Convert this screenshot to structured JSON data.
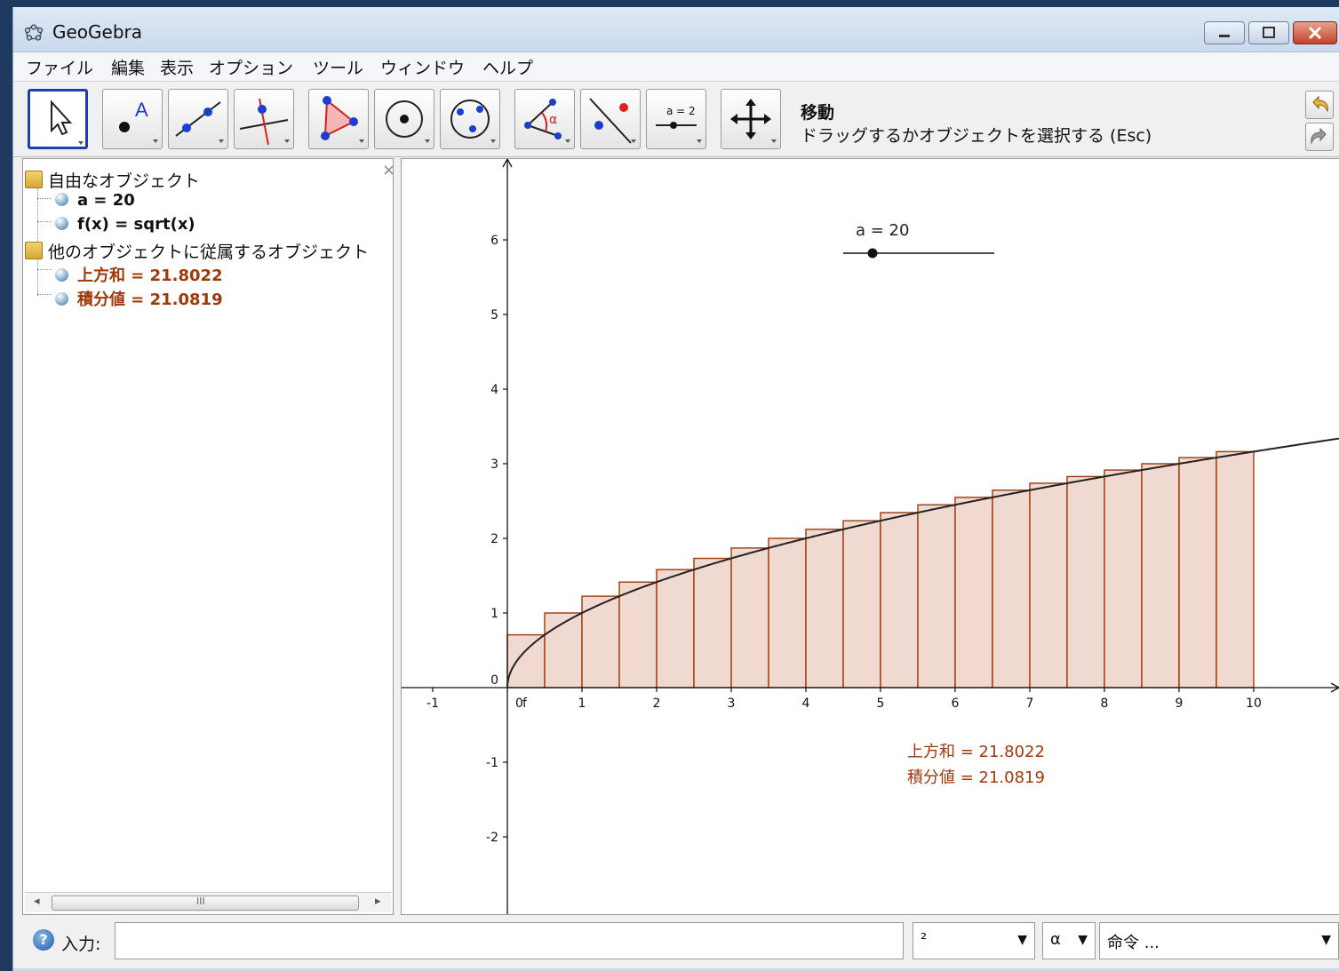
{
  "window": {
    "title": "GeoGebra"
  },
  "menu": [
    "ファイル",
    "編集",
    "表示",
    "オプション",
    "ツール",
    "ウィンドウ",
    "ヘルプ"
  ],
  "toolbar": {
    "tool_name": "移動",
    "tool_help": "ドラッグするかオブジェクトを選択する (Esc)",
    "tools": [
      "move",
      "point",
      "line-through-two-points",
      "perpendicular-line",
      "polygon",
      "circle-with-center",
      "circle-through-three-points",
      "angle",
      "reflect",
      "slider",
      "move-graphics-view"
    ],
    "slider_icon_label": "a = 2"
  },
  "algebra": {
    "free_folder": "自由なオブジェクト",
    "free_objects": [
      "a = 20",
      "f(x) = sqrt(x)"
    ],
    "dependent_folder": "他のオブジェクトに従属するオブジェクト",
    "dependent_objects": [
      "上方和 = 21.8022",
      "積分値 = 21.0819"
    ],
    "scroll_mark": "III"
  },
  "graphics": {
    "slider_label": "a = 20",
    "slider_value": 20,
    "upper_sum_text": "上方和 = 21.8022",
    "integral_text": "積分値 = 21.0819",
    "axis_x_ticks": [
      "-1",
      "1",
      "2",
      "3",
      "4",
      "5",
      "6",
      "7",
      "8",
      "9",
      "10"
    ],
    "axis_y_ticks": [
      "-2",
      "-1",
      "0",
      "1",
      "2",
      "3",
      "4",
      "5",
      "6"
    ],
    "origin_extra_label": "f",
    "curve_color": "#222222",
    "rect_stroke": "#9c3a0a",
    "rect_fill": "#f0d9d0"
  },
  "chart_data": {
    "type": "area",
    "function": "f(x) = sqrt(x)",
    "interval": [
      0,
      10
    ],
    "n": 20,
    "upper_sum": 21.8022,
    "integral": 21.0819,
    "xlim": [
      -1.4,
      11.2
    ],
    "ylim": [
      -3,
      7
    ]
  },
  "inputbar": {
    "label": "入力:",
    "value": "",
    "symbol_combo": "²",
    "greek_combo": "α",
    "command_combo": "命令 ..."
  }
}
